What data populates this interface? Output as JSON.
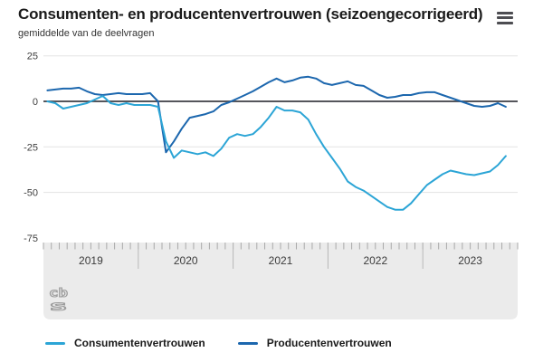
{
  "header": {
    "title": "Consumenten- en producentenvertrouwen (seizoengecorrigeerd)",
    "subtitle": "gemiddelde van de deelvragen",
    "menu_icon": "hamburger-menu"
  },
  "logo": {
    "line1": "cb",
    "line2": "s",
    "name": "CBS"
  },
  "legend": [
    {
      "label": "Consumentenvertrouwen",
      "color": "#2ca5d6"
    },
    {
      "label": "Producentenvertrouwen",
      "color": "#1c67ae"
    }
  ],
  "chart_data": {
    "type": "line",
    "title": "Consumenten- en producentenvertrouwen (seizoengecorrigeerd)",
    "subtitle": "gemiddelde van de deelvragen",
    "x_unit": "month",
    "x_start": "2019-01",
    "x_end": "2023-11",
    "year_labels": [
      "2019",
      "2020",
      "2021",
      "2022",
      "2023"
    ],
    "y_ticks": [
      25,
      0,
      -25,
      -50,
      -75
    ],
    "ylim": [
      -75,
      25
    ],
    "grid": true,
    "zero_line": true,
    "legend_position": "bottom",
    "series": [
      {
        "name": "Consumentenvertrouwen",
        "id": "consumentenvertrouwen-line",
        "color": "#2ca5d6",
        "values": [
          0,
          -1,
          -4,
          -3,
          -2,
          -1,
          1,
          3,
          -1,
          -2,
          -1,
          -2,
          -2,
          -2,
          -3,
          -22,
          -31,
          -27,
          -28,
          -29,
          -28,
          -30,
          -26,
          -20,
          -18,
          -19,
          -18,
          -14,
          -9,
          -3,
          -5,
          -5,
          -6,
          -10,
          -18,
          -25,
          -31,
          -37,
          -44,
          -47,
          -49,
          -52,
          -55,
          -58,
          -59.5,
          -59.5,
          -56,
          -51,
          -46,
          -43,
          -40,
          -38,
          -39,
          -40,
          -40.5,
          -39.5,
          -38.5,
          -35,
          -30
        ]
      },
      {
        "name": "Producentenvertrouwen",
        "id": "producentenvertrouwen-line",
        "color": "#1c67ae",
        "values": [
          6,
          6.5,
          7,
          7,
          7.5,
          5.5,
          4,
          3.5,
          4,
          4.5,
          4,
          4,
          4,
          4.5,
          0,
          -28,
          -22,
          -15,
          -9,
          -8,
          -7,
          -5.5,
          -2,
          -0.5,
          1.5,
          3.5,
          5.5,
          8,
          10.5,
          12.5,
          10.5,
          11.5,
          13,
          13.5,
          12.5,
          10,
          9,
          10,
          11,
          9,
          8.5,
          6,
          3.5,
          2,
          2.5,
          3.5,
          3.5,
          4.5,
          5,
          5,
          3.5,
          2,
          0.5,
          -1,
          -2.5,
          -3,
          -2.5,
          -1,
          -3
        ]
      }
    ],
    "style": {
      "grid_color": "#e3e3e3",
      "zero_line_color": "#55565c",
      "axis_band_color": "#ebebeb",
      "tick_color": "#a9a9a9",
      "separator_color": "#b8b8b8",
      "year_label_color": "#3c3c3c",
      "y_label_color": "#404040"
    }
  }
}
